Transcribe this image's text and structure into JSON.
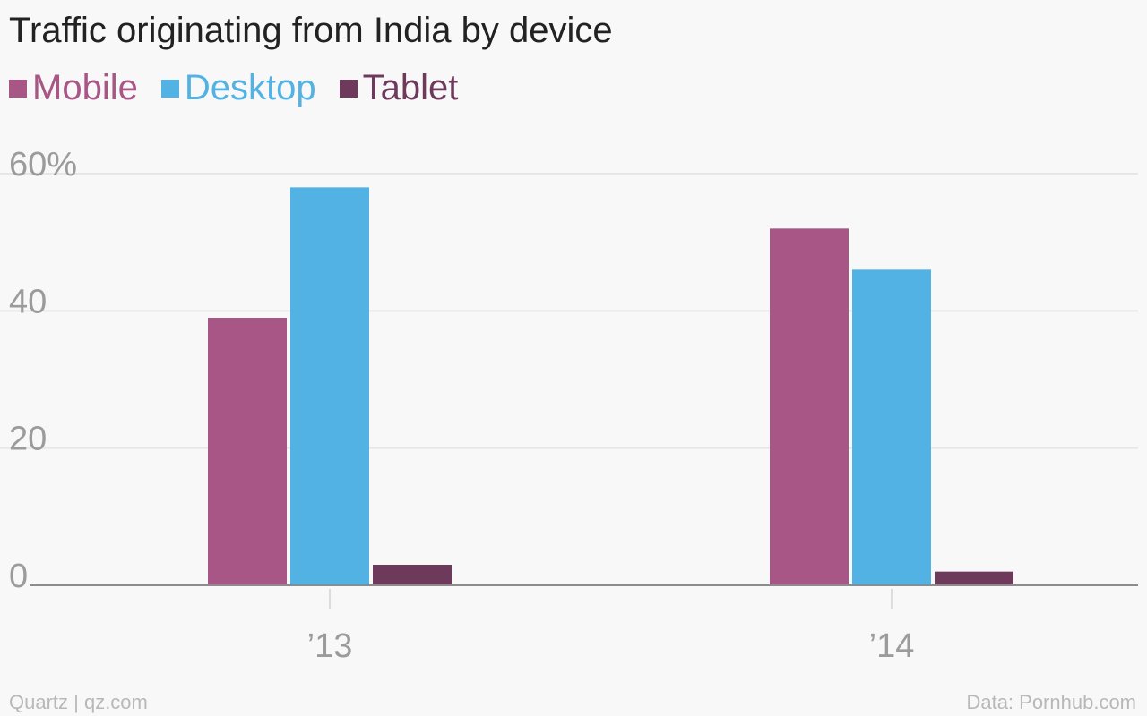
{
  "chart_data": {
    "type": "bar",
    "title": "Traffic originating from India by device",
    "categories": [
      "’13",
      "’14"
    ],
    "series": [
      {
        "name": "Mobile",
        "color": "#a85686",
        "values": [
          39,
          52
        ]
      },
      {
        "name": "Desktop",
        "color": "#53b2e4",
        "values": [
          58,
          46
        ]
      },
      {
        "name": "Tablet",
        "color": "#6e3a5c",
        "values": [
          3,
          2
        ]
      }
    ],
    "xlabel": "",
    "ylabel": "",
    "ylim": [
      0,
      60
    ],
    "yticks": [
      {
        "value": 0,
        "label": "0"
      },
      {
        "value": 20,
        "label": "20"
      },
      {
        "value": 40,
        "label": "40"
      },
      {
        "value": 60,
        "label": "60%"
      }
    ],
    "grid": true,
    "legend_position": "top-left"
  },
  "footer": {
    "source_left": "Quartz | qz.com",
    "source_right": "Data: Pornhub.com"
  }
}
